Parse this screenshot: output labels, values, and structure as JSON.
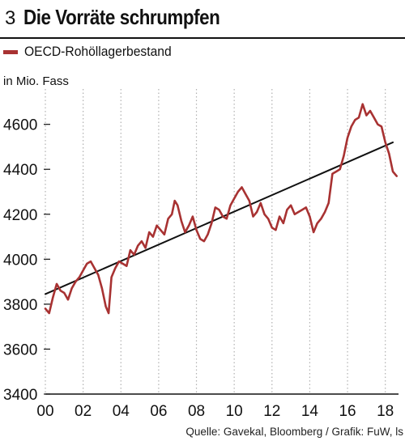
{
  "header": {
    "number": "3",
    "title": "Die Vorräte schrumpfen"
  },
  "legend": {
    "label": "OECD-Rohöllagerbestand"
  },
  "source": "Quelle: Gavekal, Bloomberg / Grafik: FuW, ls",
  "colors": {
    "series": "#a83232",
    "trend": "#111111",
    "grid": "#b0b0b0"
  },
  "chart_data": {
    "type": "line",
    "ylabel": "in Mio. Fass",
    "xlim": [
      2000,
      2018.7
    ],
    "ylim": [
      3400,
      4750
    ],
    "y_ticks": [
      3400,
      3600,
      3800,
      4000,
      4200,
      4400,
      4600
    ],
    "x_ticks": [
      {
        "value": 2000,
        "label": "00"
      },
      {
        "value": 2002,
        "label": "02"
      },
      {
        "value": 2004,
        "label": "04"
      },
      {
        "value": 2006,
        "label": "06"
      },
      {
        "value": 2008,
        "label": "08"
      },
      {
        "value": 2010,
        "label": "10"
      },
      {
        "value": 2012,
        "label": "12"
      },
      {
        "value": 2014,
        "label": "14"
      },
      {
        "value": 2016,
        "label": "16"
      },
      {
        "value": 2018,
        "label": "18"
      }
    ],
    "grid": "vertical dotted",
    "series": [
      {
        "name": "OECD-Rohöllagerbestand",
        "x": [
          2000.0,
          2000.2,
          2000.4,
          2000.6,
          2000.8,
          2001.0,
          2001.2,
          2001.4,
          2001.6,
          2001.8,
          2002.0,
          2002.2,
          2002.4,
          2002.6,
          2002.8,
          2003.0,
          2003.2,
          2003.35,
          2003.5,
          2003.7,
          2003.9,
          2004.1,
          2004.3,
          2004.5,
          2004.7,
          2004.9,
          2005.1,
          2005.3,
          2005.5,
          2005.7,
          2005.9,
          2006.1,
          2006.3,
          2006.5,
          2006.7,
          2006.85,
          2007.0,
          2007.2,
          2007.4,
          2007.6,
          2007.8,
          2008.0,
          2008.2,
          2008.4,
          2008.6,
          2008.8,
          2009.0,
          2009.2,
          2009.4,
          2009.6,
          2009.8,
          2010.0,
          2010.2,
          2010.4,
          2010.6,
          2010.8,
          2011.0,
          2011.2,
          2011.4,
          2011.6,
          2011.8,
          2012.0,
          2012.2,
          2012.4,
          2012.6,
          2012.8,
          2013.0,
          2013.2,
          2013.4,
          2013.6,
          2013.8,
          2014.0,
          2014.2,
          2014.4,
          2014.6,
          2014.8,
          2015.0,
          2015.2,
          2015.4,
          2015.6,
          2015.8,
          2016.0,
          2016.2,
          2016.4,
          2016.6,
          2016.8,
          2017.0,
          2017.2,
          2017.4,
          2017.6,
          2017.8,
          2018.0,
          2018.2,
          2018.4,
          2018.6
        ],
        "values": [
          3780,
          3760,
          3830,
          3890,
          3860,
          3850,
          3820,
          3870,
          3900,
          3920,
          3950,
          3980,
          3990,
          3960,
          3930,
          3870,
          3790,
          3760,
          3920,
          3960,
          3990,
          3980,
          3970,
          4040,
          4020,
          4060,
          4080,
          4050,
          4120,
          4100,
          4150,
          4130,
          4110,
          4180,
          4200,
          4260,
          4240,
          4170,
          4120,
          4150,
          4190,
          4130,
          4090,
          4080,
          4110,
          4160,
          4230,
          4220,
          4190,
          4180,
          4240,
          4270,
          4300,
          4320,
          4290,
          4260,
          4190,
          4210,
          4250,
          4200,
          4180,
          4140,
          4130,
          4190,
          4160,
          4220,
          4240,
          4200,
          4210,
          4220,
          4230,
          4190,
          4120,
          4160,
          4180,
          4210,
          4250,
          4380,
          4390,
          4400,
          4460,
          4540,
          4590,
          4620,
          4630,
          4690,
          4640,
          4660,
          4630,
          4600,
          4590,
          4520,
          4470,
          4390,
          4370
        ]
      },
      {
        "name": "",
        "x": [
          2000.0,
          2018.4
        ],
        "values": [
          3845,
          4520
        ]
      }
    ]
  }
}
